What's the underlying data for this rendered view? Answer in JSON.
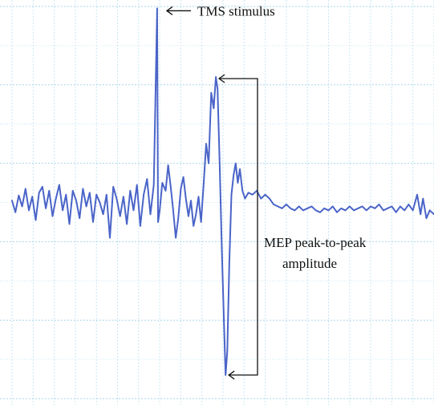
{
  "chart_data": {
    "type": "line",
    "title": "",
    "xlabel": "",
    "ylabel": "",
    "grid": true,
    "legend": "none",
    "xlim": [
      0,
      100
    ],
    "ylim": [
      -5,
      5
    ],
    "colors": {
      "trace": "#4a64c8",
      "grid_major": "#a9d6ec",
      "grid_minor": "#c9e6f3",
      "annotation": "#111111"
    },
    "series": [
      {
        "values": [
          [
            0.0,
            0.05
          ],
          [
            0.8,
            -0.25
          ],
          [
            1.6,
            0.18
          ],
          [
            2.4,
            -0.1
          ],
          [
            3.2,
            0.35
          ],
          [
            4.0,
            -0.2
          ],
          [
            4.8,
            0.15
          ],
          [
            5.6,
            -0.45
          ],
          [
            6.4,
            0.25
          ],
          [
            7.2,
            0.4
          ],
          [
            8.0,
            -0.15
          ],
          [
            8.8,
            0.3
          ],
          [
            9.6,
            -0.35
          ],
          [
            10.4,
            0.1
          ],
          [
            11.2,
            0.45
          ],
          [
            12.0,
            -0.2
          ],
          [
            12.8,
            0.2
          ],
          [
            13.6,
            -0.55
          ],
          [
            14.4,
            0.3
          ],
          [
            15.2,
            0.05
          ],
          [
            16.0,
            -0.4
          ],
          [
            16.8,
            0.35
          ],
          [
            17.6,
            -0.1
          ],
          [
            18.4,
            0.25
          ],
          [
            19.2,
            -0.5
          ],
          [
            20.0,
            0.2
          ],
          [
            20.8,
            0.0
          ],
          [
            21.6,
            -0.3
          ],
          [
            22.4,
            0.2
          ],
          [
            23.2,
            -0.9
          ],
          [
            24.0,
            0.4
          ],
          [
            24.8,
            0.1
          ],
          [
            25.6,
            -0.35
          ],
          [
            26.4,
            0.15
          ],
          [
            27.2,
            -0.55
          ],
          [
            28.0,
            0.3
          ],
          [
            28.8,
            -0.2
          ],
          [
            29.6,
            0.45
          ],
          [
            30.4,
            -0.6
          ],
          [
            31.2,
            0.2
          ],
          [
            32.0,
            0.6
          ],
          [
            32.8,
            -0.3
          ],
          [
            33.6,
            0.45
          ],
          [
            34.4,
            4.95
          ],
          [
            34.6,
            -0.5
          ],
          [
            35.0,
            -0.2
          ],
          [
            35.6,
            0.5
          ],
          [
            36.4,
            0.3
          ],
          [
            37.0,
            0.95
          ],
          [
            37.6,
            0.4
          ],
          [
            38.2,
            -0.2
          ],
          [
            38.8,
            -0.9
          ],
          [
            39.4,
            -0.4
          ],
          [
            40.0,
            0.35
          ],
          [
            40.6,
            0.65
          ],
          [
            41.2,
            0.1
          ],
          [
            41.8,
            -0.35
          ],
          [
            42.4,
            0.05
          ],
          [
            43.0,
            -0.6
          ],
          [
            43.6,
            -0.3
          ],
          [
            44.2,
            0.15
          ],
          [
            44.8,
            -0.5
          ],
          [
            45.4,
            0.45
          ],
          [
            46.0,
            1.5
          ],
          [
            46.6,
            1.0
          ],
          [
            47.2,
            2.8
          ],
          [
            47.8,
            2.4
          ],
          [
            48.3,
            3.2
          ],
          [
            48.7,
            2.9
          ],
          [
            49.2,
            1.0
          ],
          [
            49.7,
            -1.1
          ],
          [
            50.2,
            -3.0
          ],
          [
            50.6,
            -4.4
          ],
          [
            51.0,
            -3.8
          ],
          [
            51.5,
            -1.5
          ],
          [
            52.0,
            0.2
          ],
          [
            52.5,
            0.7
          ],
          [
            53.0,
            1.0
          ],
          [
            53.5,
            0.5
          ],
          [
            54.0,
            0.85
          ],
          [
            54.6,
            0.3
          ],
          [
            55.2,
            0.1
          ],
          [
            56.0,
            0.25
          ],
          [
            57.0,
            0.2
          ],
          [
            58.0,
            0.3
          ],
          [
            59.0,
            0.1
          ],
          [
            60.0,
            0.2
          ],
          [
            61.0,
            0.1
          ],
          [
            62.0,
            -0.05
          ],
          [
            63.0,
            -0.1
          ],
          [
            64.0,
            -0.15
          ],
          [
            65.0,
            -0.05
          ],
          [
            66.0,
            -0.15
          ],
          [
            67.0,
            -0.2
          ],
          [
            68.0,
            -0.1
          ],
          [
            69.0,
            -0.2
          ],
          [
            70.0,
            -0.15
          ],
          [
            71.0,
            -0.1
          ],
          [
            72.0,
            -0.2
          ],
          [
            73.0,
            -0.25
          ],
          [
            74.0,
            -0.15
          ],
          [
            75.0,
            -0.2
          ],
          [
            76.0,
            -0.1
          ],
          [
            77.0,
            -0.25
          ],
          [
            78.0,
            -0.15
          ],
          [
            79.0,
            -0.2
          ],
          [
            80.0,
            -0.1
          ],
          [
            81.0,
            -0.2
          ],
          [
            82.0,
            -0.15
          ],
          [
            83.0,
            -0.1
          ],
          [
            84.0,
            -0.2
          ],
          [
            85.0,
            -0.1
          ],
          [
            86.0,
            -0.15
          ],
          [
            87.0,
            -0.05
          ],
          [
            88.0,
            -0.2
          ],
          [
            89.0,
            -0.15
          ],
          [
            90.0,
            -0.1
          ],
          [
            91.0,
            -0.25
          ],
          [
            92.0,
            -0.1
          ],
          [
            93.0,
            -0.2
          ],
          [
            94.0,
            -0.05
          ],
          [
            95.0,
            -0.2
          ],
          [
            96.0,
            0.2
          ],
          [
            96.8,
            -0.3
          ],
          [
            97.4,
            0.1
          ],
          [
            98.2,
            -0.4
          ],
          [
            99.0,
            -0.2
          ],
          [
            100.0,
            -0.3
          ]
        ]
      }
    ],
    "annotations": [
      {
        "text": "TMS stimulus",
        "type": "arrow",
        "target": {
          "x": 34.4,
          "y": 4.95
        }
      },
      {
        "text": "MEP peak-to-peak",
        "type": "bracket",
        "from": {
          "x": 48.3,
          "y": 3.2
        },
        "to": {
          "x": 50.6,
          "y": -4.4
        }
      },
      {
        "text": "amplitude",
        "type": "bracket-continuation"
      }
    ]
  }
}
